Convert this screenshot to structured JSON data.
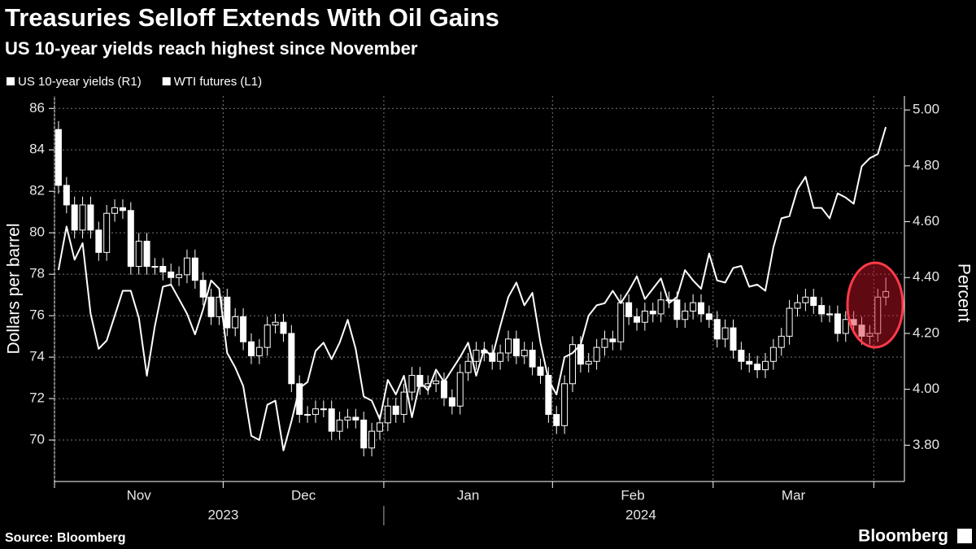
{
  "chart_data": {
    "type": "combo",
    "title": "Treasuries Selloff Extends With Oil Gains",
    "subtitle": "US 10-year yields reach highest since November",
    "y_label": "Dollars per barrel",
    "y2_label": "Percent",
    "source": "Source: Bloomberg",
    "brand": "Bloomberg",
    "grid": true,
    "xlim": [
      -0.5,
      104.1
    ],
    "xticks": [
      -0.5,
      20.5,
      40.5,
      61.5,
      81.5,
      101.5
    ],
    "month_labels": [
      {
        "value": 10,
        "label": "Nov"
      },
      {
        "value": 30.5,
        "label": "Dec"
      },
      {
        "value": 51,
        "label": "Jan"
      },
      {
        "value": 71.5,
        "label": "Feb"
      },
      {
        "value": 91.5,
        "label": "Mar"
      }
    ],
    "year_labels": [
      {
        "value": 20.5,
        "label": "2023"
      },
      {
        "value": 72.5,
        "label": "2024"
      }
    ],
    "year_divider": 40.5,
    "ylim": [
      68,
      86.6
    ],
    "yticks": [
      70,
      72,
      74,
      76,
      78,
      80,
      82,
      84,
      86
    ],
    "y2lim": [
      3.67,
      5.05
    ],
    "y2ticks": [
      {
        "value": 3.8,
        "label": "3.80"
      },
      {
        "value": 4.0,
        "label": "4.00"
      },
      {
        "value": 4.2,
        "label": "4.20"
      },
      {
        "value": 4.4,
        "label": "4.40"
      },
      {
        "value": 4.6,
        "label": "4.60"
      },
      {
        "value": 4.8,
        "label": "4.80"
      },
      {
        "value": 5.0,
        "label": "5.00"
      }
    ],
    "x": [
      0,
      1,
      2,
      3,
      4,
      5,
      6,
      7,
      8,
      9,
      10,
      11,
      12,
      13,
      14,
      15,
      16,
      17,
      18,
      19,
      20,
      21,
      22,
      23,
      24,
      25,
      26,
      27,
      28,
      29,
      30,
      31,
      32,
      33,
      34,
      35,
      36,
      37,
      38,
      39,
      40,
      41,
      42,
      43,
      44,
      45,
      46,
      47,
      48,
      49,
      50,
      51,
      52,
      53,
      54,
      55,
      56,
      57,
      58,
      59,
      60,
      61,
      62,
      63,
      64,
      65,
      66,
      67,
      68,
      69,
      70,
      71,
      72,
      73,
      74,
      75,
      76,
      77,
      78,
      79,
      80,
      81,
      82,
      83,
      84,
      85,
      86,
      87,
      88,
      89,
      90,
      91,
      92,
      93,
      94,
      95,
      96,
      97,
      98,
      99,
      100,
      101,
      102,
      103
    ],
    "series": [
      {
        "name": "US 10-year yields (R1)",
        "type": "candlestick",
        "axis": "y2",
        "color": "#ffffff",
        "open": [
          4.93,
          4.73,
          4.66,
          4.57,
          4.66,
          4.57,
          4.49,
          4.63,
          4.65,
          4.64,
          4.44,
          4.53,
          4.44,
          4.44,
          4.42,
          4.4,
          4.41,
          4.47,
          4.39,
          4.33,
          4.26,
          4.33,
          4.22,
          4.26,
          4.17,
          4.12,
          4.15,
          4.23,
          4.24,
          4.2,
          4.02,
          3.91,
          3.91,
          3.93,
          3.93,
          3.85,
          3.89,
          3.9,
          3.89,
          3.79,
          3.85,
          3.88,
          3.94,
          3.91,
          3.99,
          4.05,
          4.01,
          4.02,
          4.03,
          3.97,
          3.94,
          4.06,
          4.1,
          4.14,
          4.13,
          4.1,
          4.13,
          4.18,
          4.12,
          4.14,
          4.08,
          4.05,
          3.91,
          3.87,
          4.02,
          4.16,
          4.09,
          4.1,
          4.15,
          4.18,
          4.17,
          4.31,
          4.26,
          4.24,
          4.28,
          4.27,
          4.32,
          4.32,
          4.25,
          4.28,
          4.31,
          4.27,
          4.25,
          4.18,
          4.22,
          4.14,
          4.1,
          4.09,
          4.07,
          4.1,
          4.15,
          4.19,
          4.29,
          4.31,
          4.33,
          4.3,
          4.27,
          4.27,
          4.2,
          4.25,
          4.23,
          4.19,
          4.2,
          4.33
        ],
        "high": [
          4.96,
          4.76,
          4.69,
          4.69,
          4.69,
          4.6,
          4.66,
          4.68,
          4.68,
          4.67,
          4.56,
          4.56,
          4.47,
          4.47,
          4.45,
          4.44,
          4.5,
          4.5,
          4.42,
          4.36,
          4.36,
          4.36,
          4.29,
          4.29,
          4.2,
          4.18,
          4.26,
          4.27,
          4.27,
          4.23,
          4.05,
          3.94,
          3.96,
          3.96,
          3.96,
          3.92,
          3.93,
          3.93,
          3.92,
          3.88,
          3.91,
          3.97,
          3.97,
          4.02,
          4.08,
          4.08,
          4.05,
          4.06,
          4.06,
          4.0,
          4.09,
          4.13,
          4.17,
          4.17,
          4.16,
          4.16,
          4.21,
          4.21,
          4.17,
          4.17,
          4.11,
          4.08,
          3.94,
          4.05,
          4.19,
          4.19,
          4.13,
          4.18,
          4.21,
          4.21,
          4.34,
          4.34,
          4.29,
          4.31,
          4.31,
          4.35,
          4.35,
          4.35,
          4.31,
          4.34,
          4.34,
          4.3,
          4.28,
          4.25,
          4.25,
          4.17,
          4.13,
          4.12,
          4.13,
          4.18,
          4.22,
          4.32,
          4.34,
          4.36,
          4.36,
          4.33,
          4.3,
          4.3,
          4.28,
          4.28,
          4.26,
          4.23,
          4.36,
          4.4
        ],
        "low": [
          4.7,
          4.63,
          4.54,
          4.54,
          4.54,
          4.46,
          4.46,
          4.6,
          4.61,
          4.41,
          4.41,
          4.41,
          4.41,
          4.39,
          4.37,
          4.37,
          4.38,
          4.36,
          4.3,
          4.23,
          4.23,
          4.19,
          4.19,
          4.14,
          4.09,
          4.09,
          4.12,
          4.2,
          4.17,
          3.99,
          3.88,
          3.88,
          3.88,
          3.9,
          3.82,
          3.82,
          3.86,
          3.86,
          3.76,
          3.76,
          3.82,
          3.85,
          3.88,
          3.88,
          3.96,
          3.98,
          3.98,
          3.99,
          3.94,
          3.91,
          3.91,
          4.03,
          4.07,
          4.1,
          4.07,
          4.07,
          4.1,
          4.09,
          4.09,
          4.05,
          4.02,
          3.88,
          3.84,
          3.84,
          3.99,
          4.06,
          4.06,
          4.07,
          4.12,
          4.14,
          4.14,
          4.23,
          4.21,
          4.21,
          4.24,
          4.24,
          4.29,
          4.22,
          4.22,
          4.25,
          4.24,
          4.22,
          4.15,
          4.15,
          4.11,
          4.07,
          4.06,
          4.04,
          4.04,
          4.07,
          4.12,
          4.16,
          4.26,
          4.28,
          4.27,
          4.24,
          4.24,
          4.17,
          4.17,
          4.2,
          4.16,
          4.16,
          4.17,
          4.3
        ],
        "close": [
          4.73,
          4.66,
          4.57,
          4.66,
          4.57,
          4.49,
          4.63,
          4.65,
          4.64,
          4.44,
          4.53,
          4.44,
          4.44,
          4.42,
          4.4,
          4.41,
          4.47,
          4.39,
          4.33,
          4.26,
          4.33,
          4.22,
          4.26,
          4.17,
          4.12,
          4.15,
          4.23,
          4.24,
          4.2,
          4.02,
          3.91,
          3.91,
          3.93,
          3.93,
          3.85,
          3.89,
          3.9,
          3.89,
          3.79,
          3.85,
          3.88,
          3.94,
          3.91,
          3.99,
          4.05,
          4.01,
          4.02,
          4.03,
          3.97,
          3.94,
          4.06,
          4.1,
          4.14,
          4.13,
          4.1,
          4.13,
          4.18,
          4.12,
          4.14,
          4.08,
          4.05,
          3.91,
          3.87,
          4.02,
          4.16,
          4.09,
          4.1,
          4.15,
          4.18,
          4.17,
          4.31,
          4.26,
          4.24,
          4.28,
          4.27,
          4.32,
          4.32,
          4.25,
          4.28,
          4.31,
          4.27,
          4.25,
          4.18,
          4.22,
          4.14,
          4.1,
          4.09,
          4.07,
          4.1,
          4.15,
          4.19,
          4.29,
          4.31,
          4.33,
          4.3,
          4.27,
          4.27,
          4.2,
          4.25,
          4.23,
          4.19,
          4.2,
          4.33,
          4.35
        ]
      },
      {
        "name": "WTI futures (L1)",
        "type": "line",
        "axis": "y",
        "color": "#ffffff",
        "values": [
          78.2,
          80.3,
          78.7,
          79.5,
          76.1,
          74.4,
          74.8,
          76.0,
          77.2,
          77.2,
          75.9,
          73.1,
          75.5,
          77.4,
          77.5,
          76.8,
          76.1,
          75.1,
          76.3,
          77.7,
          77.3,
          74.2,
          73.5,
          72.6,
          70.2,
          70.0,
          71.7,
          71.9,
          69.5,
          70.9,
          72.5,
          72.8,
          74.3,
          74.7,
          73.9,
          74.7,
          75.8,
          74.4,
          72.1,
          71.9,
          71.0,
          72.9,
          72.2,
          73.1,
          71.1,
          72.8,
          72.4,
          73.4,
          72.8,
          73.4,
          74.0,
          74.7,
          73.1,
          74.4,
          74.0,
          75.5,
          76.9,
          77.6,
          76.5,
          77.1,
          74.7,
          72.9,
          72.2,
          74.0,
          74.2,
          74.6,
          76.0,
          76.5,
          76.6,
          77.2,
          76.6,
          77.2,
          77.9,
          76.8,
          77.3,
          77.8,
          76.6,
          76.9,
          78.2,
          77.7,
          77.3,
          79.0,
          77.7,
          77.6,
          78.3,
          78.4,
          77.4,
          77.5,
          77.2,
          79.3,
          80.7,
          80.8,
          82.1,
          82.7,
          81.2,
          81.2,
          80.7,
          81.9,
          81.7,
          81.4,
          83.2,
          83.6,
          83.8,
          85.1
        ]
      }
    ]
  }
}
